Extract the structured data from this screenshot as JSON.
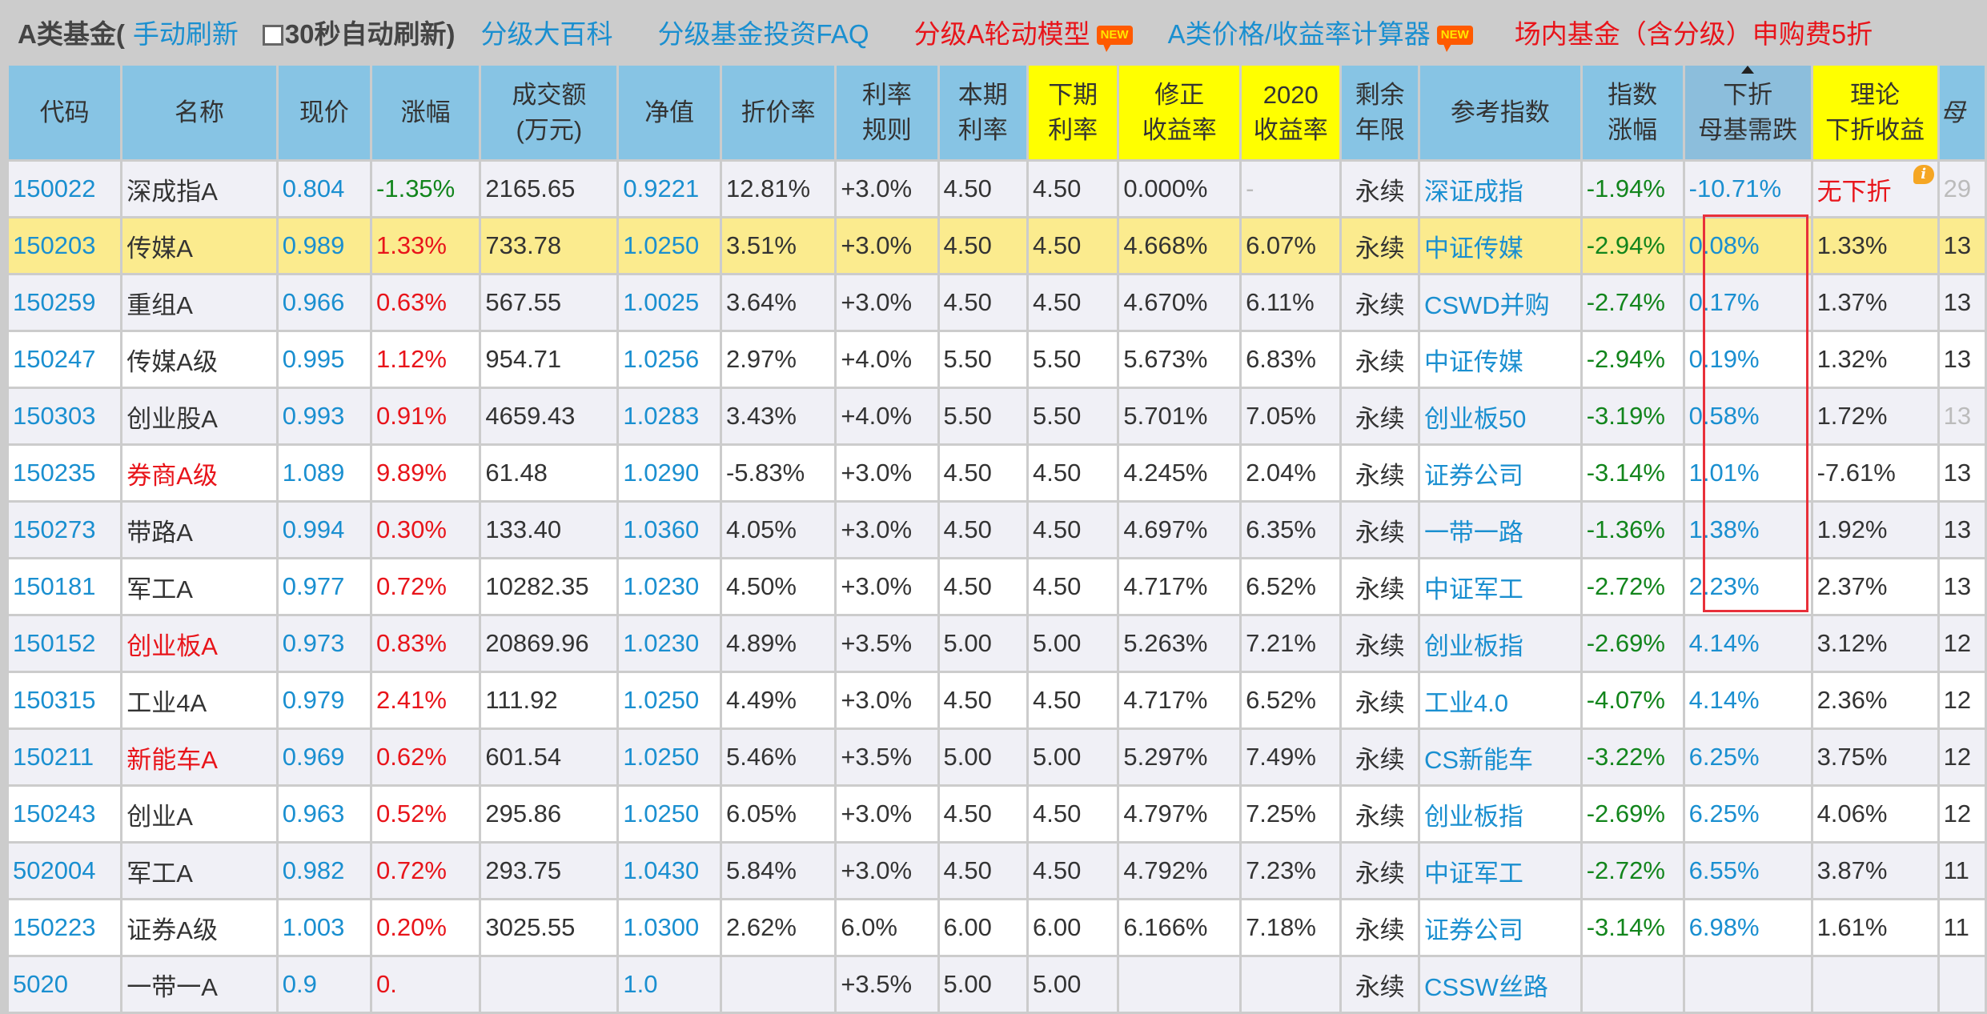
{
  "topbar": {
    "title": "A类基金(",
    "manual_refresh": "手动刷新",
    "auto_refresh_label": "30秒自动刷新)",
    "auto_refresh_checked": false,
    "links": [
      {
        "label": "分级大百科",
        "color": "blue",
        "new": false
      },
      {
        "label": "分级基金投资FAQ",
        "color": "blue",
        "new": false
      },
      {
        "label": "分级A轮动模型",
        "color": "red",
        "new": true
      },
      {
        "label": "A类价格/收益率计算器",
        "color": "blue",
        "new": true
      },
      {
        "label": "场内基金（含分级）申购费5折",
        "color": "red",
        "new": false
      }
    ],
    "new_badge": "NEW"
  },
  "colors": {
    "header_blue": "#87c4e4",
    "header_yellow": "#ffff00",
    "highlight_row": "#fbeb8e",
    "link_blue": "#1a8fd0",
    "up_red": "#e8141a",
    "down_green": "#12851c",
    "red_box": "#e8303a"
  },
  "table": {
    "columns": [
      {
        "key": "code",
        "label1": "代码",
        "label2": ""
      },
      {
        "key": "name",
        "label1": "名称",
        "label2": ""
      },
      {
        "key": "price",
        "label1": "现价",
        "label2": ""
      },
      {
        "key": "change",
        "label1": "涨幅",
        "label2": ""
      },
      {
        "key": "volume",
        "label1": "成交额",
        "label2": "(万元)"
      },
      {
        "key": "nav",
        "label1": "净值",
        "label2": ""
      },
      {
        "key": "discount",
        "label1": "折价率",
        "label2": ""
      },
      {
        "key": "rate_rule",
        "label1": "利率",
        "label2": "规则"
      },
      {
        "key": "cur_rate",
        "label1": "本期",
        "label2": "利率"
      },
      {
        "key": "next_rate",
        "label1": "下期",
        "label2": "利率"
      },
      {
        "key": "adj_yield",
        "label1": "修正",
        "label2": "收益率"
      },
      {
        "key": "yield_2020",
        "label1": "2020",
        "label2": "收益率"
      },
      {
        "key": "remaining",
        "label1": "剩余",
        "label2": "年限"
      },
      {
        "key": "ref_index",
        "label1": "参考指数",
        "label2": ""
      },
      {
        "key": "index_change",
        "label1": "指数",
        "label2": "涨幅"
      },
      {
        "key": "down_trigger",
        "label1": "下折",
        "label2": "母基需跌"
      },
      {
        "key": "theory_yield",
        "label1": "理论",
        "label2": "下折收益"
      },
      {
        "key": "parent",
        "label1": "母",
        "label2": ""
      }
    ],
    "sorted_column": "down_trigger",
    "rows": [
      {
        "code": "150022",
        "name": "深成指A",
        "name_red": false,
        "price": "0.804",
        "change": "-1.35%",
        "volume": "2165.65",
        "nav": "0.9221",
        "discount": "12.81%",
        "rate_rule": "+3.0%",
        "cur_rate": "4.50",
        "next_rate": "4.50",
        "adj_yield": "0.000%",
        "yield_2020": "-",
        "remaining": "永续",
        "ref_index": "深证成指",
        "index_change": "-1.94%",
        "down_trigger": "-10.71%",
        "theory_yield": "无下折",
        "parent": "29",
        "highlight": false
      },
      {
        "code": "150203",
        "name": "传媒A",
        "name_red": false,
        "price": "0.989",
        "change": "1.33%",
        "volume": "733.78",
        "nav": "1.0250",
        "discount": "3.51%",
        "rate_rule": "+3.0%",
        "cur_rate": "4.50",
        "next_rate": "4.50",
        "adj_yield": "4.668%",
        "yield_2020": "6.07%",
        "remaining": "永续",
        "ref_index": "中证传媒",
        "index_change": "-2.94%",
        "down_trigger": "0.08%",
        "theory_yield": "1.33%",
        "parent": "13",
        "highlight": true
      },
      {
        "code": "150259",
        "name": "重组A",
        "name_red": false,
        "price": "0.966",
        "change": "0.63%",
        "volume": "567.55",
        "nav": "1.0025",
        "discount": "3.64%",
        "rate_rule": "+3.0%",
        "cur_rate": "4.50",
        "next_rate": "4.50",
        "adj_yield": "4.670%",
        "yield_2020": "6.11%",
        "remaining": "永续",
        "ref_index": "CSWD并购",
        "index_change": "-2.74%",
        "down_trigger": "0.17%",
        "theory_yield": "1.37%",
        "parent": "13",
        "highlight": false
      },
      {
        "code": "150247",
        "name": "传媒A级",
        "name_red": false,
        "price": "0.995",
        "change": "1.12%",
        "volume": "954.71",
        "nav": "1.0256",
        "discount": "2.97%",
        "rate_rule": "+4.0%",
        "cur_rate": "5.50",
        "next_rate": "5.50",
        "adj_yield": "5.673%",
        "yield_2020": "6.83%",
        "remaining": "永续",
        "ref_index": "中证传媒",
        "index_change": "-2.94%",
        "down_trigger": "0.19%",
        "theory_yield": "1.32%",
        "parent": "13",
        "highlight": false
      },
      {
        "code": "150303",
        "name": "创业股A",
        "name_red": false,
        "price": "0.993",
        "change": "0.91%",
        "volume": "4659.43",
        "nav": "1.0283",
        "discount": "3.43%",
        "rate_rule": "+4.0%",
        "cur_rate": "5.50",
        "next_rate": "5.50",
        "adj_yield": "5.701%",
        "yield_2020": "7.05%",
        "remaining": "永续",
        "ref_index": "创业板50",
        "index_change": "-3.19%",
        "down_trigger": "0.58%",
        "theory_yield": "1.72%",
        "parent": "13",
        "highlight": false
      },
      {
        "code": "150235",
        "name": "券商A级",
        "name_red": true,
        "price": "1.089",
        "change": "9.89%",
        "volume": "61.48",
        "nav": "1.0290",
        "discount": "-5.83%",
        "rate_rule": "+3.0%",
        "cur_rate": "4.50",
        "next_rate": "4.50",
        "adj_yield": "4.245%",
        "yield_2020": "2.04%",
        "remaining": "永续",
        "ref_index": "证券公司",
        "index_change": "-3.14%",
        "down_trigger": "1.01%",
        "theory_yield": "-7.61%",
        "parent": "13",
        "highlight": false
      },
      {
        "code": "150273",
        "name": "带路A",
        "name_red": false,
        "price": "0.994",
        "change": "0.30%",
        "volume": "133.40",
        "nav": "1.0360",
        "discount": "4.05%",
        "rate_rule": "+3.0%",
        "cur_rate": "4.50",
        "next_rate": "4.50",
        "adj_yield": "4.697%",
        "yield_2020": "6.35%",
        "remaining": "永续",
        "ref_index": "一带一路",
        "index_change": "-1.36%",
        "down_trigger": "1.38%",
        "theory_yield": "1.92%",
        "parent": "13",
        "highlight": false
      },
      {
        "code": "150181",
        "name": "军工A",
        "name_red": false,
        "price": "0.977",
        "change": "0.72%",
        "volume": "10282.35",
        "nav": "1.0230",
        "discount": "4.50%",
        "rate_rule": "+3.0%",
        "cur_rate": "4.50",
        "next_rate": "4.50",
        "adj_yield": "4.717%",
        "yield_2020": "6.52%",
        "remaining": "永续",
        "ref_index": "中证军工",
        "index_change": "-2.72%",
        "down_trigger": "2.23%",
        "theory_yield": "2.37%",
        "parent": "13",
        "highlight": false
      },
      {
        "code": "150152",
        "name": "创业板A",
        "name_red": true,
        "price": "0.973",
        "change": "0.83%",
        "volume": "20869.96",
        "nav": "1.0230",
        "discount": "4.89%",
        "rate_rule": "+3.5%",
        "cur_rate": "5.00",
        "next_rate": "5.00",
        "adj_yield": "5.263%",
        "yield_2020": "7.21%",
        "remaining": "永续",
        "ref_index": "创业板指",
        "index_change": "-2.69%",
        "down_trigger": "4.14%",
        "theory_yield": "3.12%",
        "parent": "12",
        "highlight": false
      },
      {
        "code": "150315",
        "name": "工业4A",
        "name_red": false,
        "price": "0.979",
        "change": "2.41%",
        "volume": "111.92",
        "nav": "1.0250",
        "discount": "4.49%",
        "rate_rule": "+3.0%",
        "cur_rate": "4.50",
        "next_rate": "4.50",
        "adj_yield": "4.717%",
        "yield_2020": "6.52%",
        "remaining": "永续",
        "ref_index": "工业4.0",
        "index_change": "-4.07%",
        "down_trigger": "4.14%",
        "theory_yield": "2.36%",
        "parent": "12",
        "highlight": false
      },
      {
        "code": "150211",
        "name": "新能车A",
        "name_red": true,
        "price": "0.969",
        "change": "0.62%",
        "volume": "601.54",
        "nav": "1.0250",
        "discount": "5.46%",
        "rate_rule": "+3.5%",
        "cur_rate": "5.00",
        "next_rate": "5.00",
        "adj_yield": "5.297%",
        "yield_2020": "7.49%",
        "remaining": "永续",
        "ref_index": "CS新能车",
        "index_change": "-3.22%",
        "down_trigger": "6.25%",
        "theory_yield": "3.75%",
        "parent": "12",
        "highlight": false
      },
      {
        "code": "150243",
        "name": "创业A",
        "name_red": false,
        "price": "0.963",
        "change": "0.52%",
        "volume": "295.86",
        "nav": "1.0250",
        "discount": "6.05%",
        "rate_rule": "+3.0%",
        "cur_rate": "4.50",
        "next_rate": "4.50",
        "adj_yield": "4.797%",
        "yield_2020": "7.25%",
        "remaining": "永续",
        "ref_index": "创业板指",
        "index_change": "-2.69%",
        "down_trigger": "6.25%",
        "theory_yield": "4.06%",
        "parent": "12",
        "highlight": false
      },
      {
        "code": "502004",
        "name": "军工A",
        "name_red": false,
        "price": "0.982",
        "change": "0.72%",
        "volume": "293.75",
        "nav": "1.0430",
        "discount": "5.84%",
        "rate_rule": "+3.0%",
        "cur_rate": "4.50",
        "next_rate": "4.50",
        "adj_yield": "4.792%",
        "yield_2020": "7.23%",
        "remaining": "永续",
        "ref_index": "中证军工",
        "index_change": "-2.72%",
        "down_trigger": "6.55%",
        "theory_yield": "3.87%",
        "parent": "11",
        "highlight": false
      },
      {
        "code": "150223",
        "name": "证券A级",
        "name_red": false,
        "price": "1.003",
        "change": "0.20%",
        "volume": "3025.55",
        "nav": "1.0300",
        "discount": "2.62%",
        "rate_rule": "6.0%",
        "cur_rate": "6.00",
        "next_rate": "6.00",
        "adj_yield": "6.166%",
        "yield_2020": "7.18%",
        "remaining": "永续",
        "ref_index": "证券公司",
        "index_change": "-3.14%",
        "down_trigger": "6.98%",
        "theory_yield": "1.61%",
        "parent": "11",
        "highlight": false
      },
      {
        "code": "5020",
        "name": "一带一A",
        "name_red": false,
        "price": "0.9",
        "change": "0.",
        "volume": "",
        "nav": "1.0",
        "discount": "",
        "rate_rule": "+3.5%",
        "cur_rate": "5.00",
        "next_rate": "5.00",
        "adj_yield": "",
        "yield_2020": "",
        "remaining": "永续",
        "ref_index": "CSSW丝路",
        "index_change": "",
        "down_trigger": "",
        "theory_yield": "",
        "parent": "",
        "highlight": false
      }
    ]
  }
}
